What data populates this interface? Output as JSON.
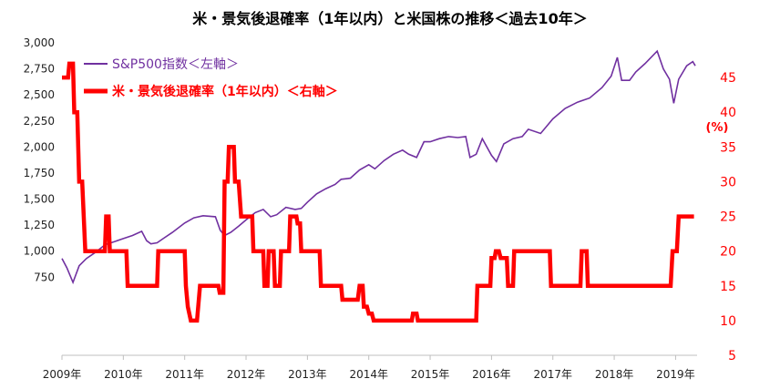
{
  "chart_data": {
    "type": "line",
    "title": "米・景気後退確率（1年以内）と米国株の推移＜過去10年＞",
    "x_ticks": [
      "2009年",
      "2010年",
      "2011年",
      "2012年",
      "2013年",
      "2014年",
      "2015年",
      "2016年",
      "2017年",
      "2018年",
      "2019年"
    ],
    "y_left_ticks": [
      "3,000",
      "2,750",
      "2,500",
      "2,250",
      "2,000",
      "1,750",
      "1,500",
      "1,250",
      "1,000",
      "750"
    ],
    "y_left_values": [
      3000,
      2750,
      2500,
      2250,
      2000,
      1750,
      1500,
      1250,
      1000,
      750
    ],
    "y_left_range": [
      0,
      3000
    ],
    "y_right_ticks": [
      "45",
      "40",
      "35",
      "30",
      "25",
      "20",
      "15",
      "10",
      "5"
    ],
    "y_right_values": [
      45,
      40,
      35,
      30,
      25,
      20,
      15,
      10,
      5
    ],
    "y_right_range": [
      5,
      50
    ],
    "y_right_unit": "(%)",
    "x_range": [
      2009.0,
      2019.35
    ],
    "grid": false,
    "legend_position": "top-left",
    "series": [
      {
        "name": "S&P500指数＜左軸＞",
        "axis": "left",
        "color": "#7030a0",
        "points": [
          [
            2009.0,
            930
          ],
          [
            2009.08,
            840
          ],
          [
            2009.18,
            700
          ],
          [
            2009.28,
            860
          ],
          [
            2009.4,
            930
          ],
          [
            2009.55,
            990
          ],
          [
            2009.7,
            1060
          ],
          [
            2009.85,
            1090
          ],
          [
            2010.0,
            1120
          ],
          [
            2010.15,
            1150
          ],
          [
            2010.3,
            1190
          ],
          [
            2010.38,
            1100
          ],
          [
            2010.45,
            1070
          ],
          [
            2010.55,
            1080
          ],
          [
            2010.65,
            1120
          ],
          [
            2010.8,
            1180
          ],
          [
            2011.0,
            1270
          ],
          [
            2011.15,
            1320
          ],
          [
            2011.3,
            1340
          ],
          [
            2011.5,
            1330
          ],
          [
            2011.58,
            1200
          ],
          [
            2011.65,
            1150
          ],
          [
            2011.75,
            1180
          ],
          [
            2011.88,
            1240
          ],
          [
            2012.0,
            1300
          ],
          [
            2012.15,
            1370
          ],
          [
            2012.28,
            1400
          ],
          [
            2012.4,
            1330
          ],
          [
            2012.5,
            1350
          ],
          [
            2012.65,
            1420
          ],
          [
            2012.8,
            1400
          ],
          [
            2012.9,
            1410
          ],
          [
            2013.0,
            1470
          ],
          [
            2013.15,
            1550
          ],
          [
            2013.3,
            1600
          ],
          [
            2013.45,
            1640
          ],
          [
            2013.55,
            1690
          ],
          [
            2013.7,
            1700
          ],
          [
            2013.85,
            1780
          ],
          [
            2014.0,
            1830
          ],
          [
            2014.1,
            1790
          ],
          [
            2014.25,
            1870
          ],
          [
            2014.4,
            1930
          ],
          [
            2014.55,
            1970
          ],
          [
            2014.65,
            1930
          ],
          [
            2014.78,
            1900
          ],
          [
            2014.9,
            2050
          ],
          [
            2015.0,
            2050
          ],
          [
            2015.15,
            2080
          ],
          [
            2015.3,
            2100
          ],
          [
            2015.45,
            2090
          ],
          [
            2015.58,
            2100
          ],
          [
            2015.65,
            1900
          ],
          [
            2015.75,
            1930
          ],
          [
            2015.85,
            2080
          ],
          [
            2016.0,
            1920
          ],
          [
            2016.08,
            1860
          ],
          [
            2016.2,
            2030
          ],
          [
            2016.35,
            2080
          ],
          [
            2016.5,
            2100
          ],
          [
            2016.6,
            2170
          ],
          [
            2016.8,
            2130
          ],
          [
            2016.9,
            2200
          ],
          [
            2017.0,
            2270
          ],
          [
            2017.2,
            2370
          ],
          [
            2017.4,
            2430
          ],
          [
            2017.6,
            2470
          ],
          [
            2017.8,
            2570
          ],
          [
            2017.95,
            2680
          ],
          [
            2018.05,
            2860
          ],
          [
            2018.12,
            2640
          ],
          [
            2018.25,
            2640
          ],
          [
            2018.35,
            2720
          ],
          [
            2018.5,
            2800
          ],
          [
            2018.7,
            2920
          ],
          [
            2018.8,
            2750
          ],
          [
            2018.9,
            2650
          ],
          [
            2018.97,
            2420
          ],
          [
            2019.05,
            2650
          ],
          [
            2019.18,
            2780
          ],
          [
            2019.28,
            2820
          ],
          [
            2019.32,
            2780
          ]
        ]
      },
      {
        "name": "米・景気後退確率（1年以内）＜右軸＞",
        "axis": "right",
        "color": "#ff0000",
        "points": [
          [
            2009.0,
            45
          ],
          [
            2009.1,
            45
          ],
          [
            2009.12,
            47
          ],
          [
            2009.18,
            47
          ],
          [
            2009.2,
            40
          ],
          [
            2009.25,
            40
          ],
          [
            2009.28,
            30
          ],
          [
            2009.33,
            30
          ],
          [
            2009.38,
            20
          ],
          [
            2009.7,
            20
          ],
          [
            2009.72,
            25
          ],
          [
            2009.76,
            25
          ],
          [
            2009.78,
            20
          ],
          [
            2010.05,
            20
          ],
          [
            2010.07,
            15
          ],
          [
            2010.55,
            15
          ],
          [
            2010.57,
            20
          ],
          [
            2011.0,
            20
          ],
          [
            2011.02,
            15
          ],
          [
            2011.05,
            12
          ],
          [
            2011.1,
            10
          ],
          [
            2011.2,
            10
          ],
          [
            2011.25,
            15
          ],
          [
            2011.55,
            15
          ],
          [
            2011.57,
            14
          ],
          [
            2011.63,
            14
          ],
          [
            2011.65,
            30
          ],
          [
            2011.7,
            30
          ],
          [
            2011.72,
            35
          ],
          [
            2011.8,
            35
          ],
          [
            2011.82,
            30
          ],
          [
            2011.88,
            30
          ],
          [
            2011.92,
            25
          ],
          [
            2012.1,
            25
          ],
          [
            2012.12,
            20
          ],
          [
            2012.28,
            20
          ],
          [
            2012.3,
            15
          ],
          [
            2012.35,
            15
          ],
          [
            2012.37,
            20
          ],
          [
            2012.45,
            20
          ],
          [
            2012.47,
            15
          ],
          [
            2012.55,
            15
          ],
          [
            2012.57,
            20
          ],
          [
            2012.7,
            20
          ],
          [
            2012.72,
            25
          ],
          [
            2012.82,
            25
          ],
          [
            2012.84,
            24
          ],
          [
            2012.88,
            24
          ],
          [
            2012.9,
            20
          ],
          [
            2013.2,
            20
          ],
          [
            2013.22,
            15
          ],
          [
            2013.55,
            15
          ],
          [
            2013.57,
            13
          ],
          [
            2013.82,
            13
          ],
          [
            2013.85,
            15
          ],
          [
            2013.9,
            15
          ],
          [
            2013.92,
            12
          ],
          [
            2013.97,
            12
          ],
          [
            2014.0,
            11
          ],
          [
            2014.05,
            11
          ],
          [
            2014.08,
            10
          ],
          [
            2014.7,
            10
          ],
          [
            2014.72,
            11
          ],
          [
            2014.78,
            11
          ],
          [
            2014.8,
            10
          ],
          [
            2015.75,
            10
          ],
          [
            2015.77,
            15
          ],
          [
            2015.98,
            15
          ],
          [
            2016.0,
            19
          ],
          [
            2016.05,
            19
          ],
          [
            2016.07,
            20
          ],
          [
            2016.12,
            20
          ],
          [
            2016.15,
            19
          ],
          [
            2016.25,
            19
          ],
          [
            2016.27,
            15
          ],
          [
            2016.35,
            15
          ],
          [
            2016.37,
            20
          ],
          [
            2016.95,
            20
          ],
          [
            2016.97,
            15
          ],
          [
            2017.45,
            15
          ],
          [
            2017.47,
            20
          ],
          [
            2017.55,
            20
          ],
          [
            2017.57,
            15
          ],
          [
            2018.92,
            15
          ],
          [
            2018.95,
            20
          ],
          [
            2019.02,
            20
          ],
          [
            2019.05,
            25
          ],
          [
            2019.3,
            25
          ]
        ]
      }
    ]
  },
  "legend": {
    "item1_label": "S&P500指数＜左軸＞",
    "item2_label": "米・景気後退確率（1年以内）＜右軸＞"
  }
}
